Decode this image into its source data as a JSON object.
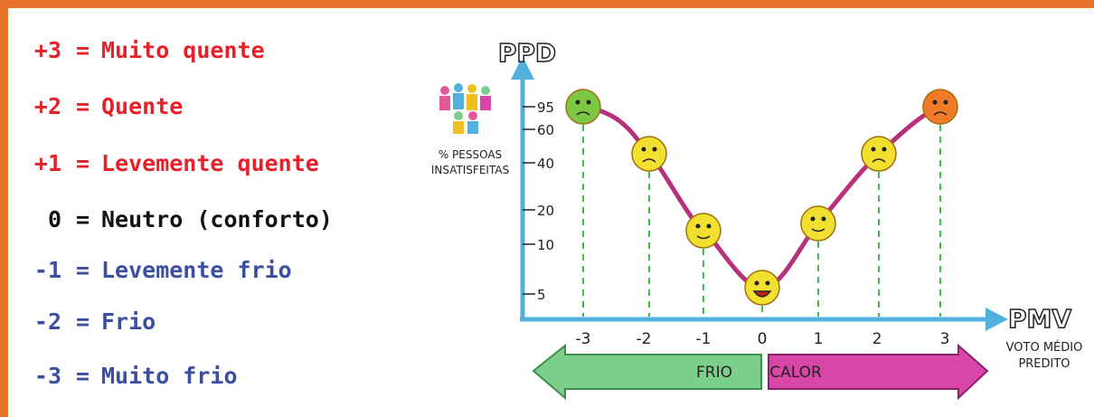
{
  "scale": [
    {
      "code": "+3",
      "sign": "=",
      "label": "Muito quente"
    },
    {
      "code": "+2",
      "sign": "=",
      "label": "Quente"
    },
    {
      "code": "+1",
      "sign": "=",
      "label": "Levemente quente"
    },
    {
      "code": "0",
      "sign": "=",
      "label": "Neutro (conforto)"
    },
    {
      "code": "-1",
      "sign": "=",
      "label": "Levemente frio"
    },
    {
      "code": "-2",
      "sign": "=",
      "label": "Frio"
    },
    {
      "code": "-3",
      "sign": "=",
      "label": "Muito frio"
    }
  ],
  "diagram": {
    "y_axis": "PPD",
    "y_axis_caption": [
      "% PESSOAS",
      "INSATISFEITAS"
    ],
    "y_ticks": [
      "95",
      "60",
      "40",
      "20",
      "10",
      "5"
    ],
    "x_axis": "PMV",
    "x_axis_caption": [
      "VOTO MÉDIO",
      "PREDITO"
    ],
    "x_ticks": [
      "-3",
      "-2",
      "-1",
      "0",
      "1",
      "2",
      "3"
    ],
    "arrows": [
      "FRIO",
      "CALOR"
    ]
  }
}
